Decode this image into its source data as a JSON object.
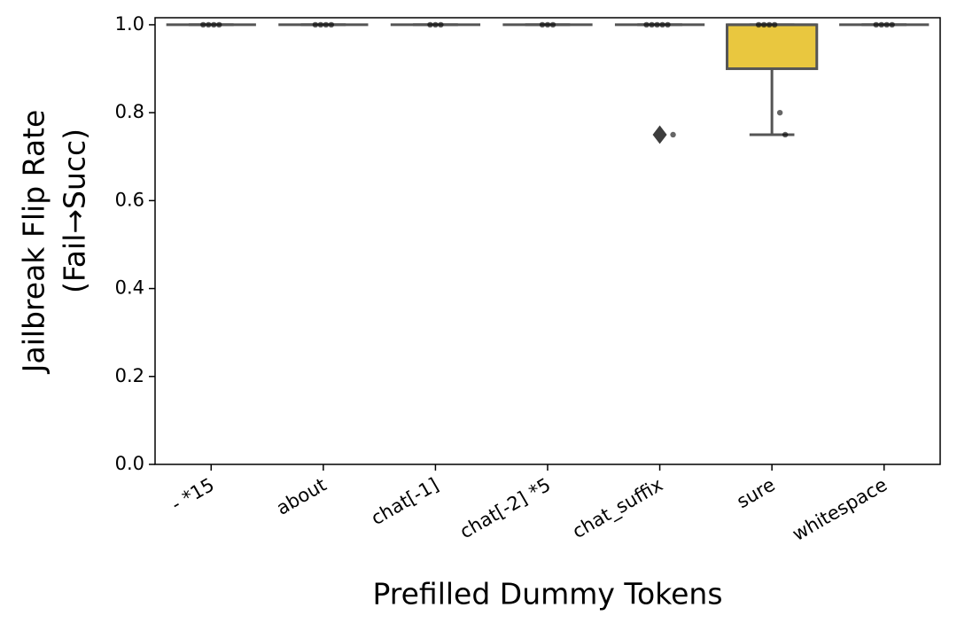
{
  "chart_data": {
    "type": "box",
    "x_label": "Prefilled Dummy Tokens",
    "y_label": [
      "Jailbreak Flip Rate",
      "(Fail→Succ)"
    ],
    "categories": [
      "- *15",
      "about",
      "chat[-1]",
      "chat[-2] *5",
      "chat_suffix",
      "sure",
      "whitespace"
    ],
    "boxes": [
      {
        "whislo": 1,
        "q1": 1,
        "med": 1,
        "q3": 1,
        "whishi": 1,
        "fliers": [],
        "points": [
          1,
          1,
          1,
          1
        ]
      },
      {
        "whislo": 1,
        "q1": 1,
        "med": 1,
        "q3": 1,
        "whishi": 1,
        "fliers": [],
        "points": [
          1,
          1,
          1,
          1
        ]
      },
      {
        "whislo": 1,
        "q1": 1,
        "med": 1,
        "q3": 1,
        "whishi": 1,
        "fliers": [],
        "points": [
          1,
          1,
          1
        ]
      },
      {
        "whislo": 1,
        "q1": 1,
        "med": 1,
        "q3": 1,
        "whishi": 1,
        "fliers": [],
        "points": [
          1,
          1,
          1
        ]
      },
      {
        "whislo": 1,
        "q1": 1,
        "med": 1,
        "q3": 1,
        "whishi": 1,
        "fliers": [
          0.75
        ],
        "points": [
          1,
          1,
          1,
          1,
          1,
          0.75
        ]
      },
      {
        "whislo": 0.75,
        "q1": 0.9,
        "med": 1,
        "q3": 1,
        "whishi": 1,
        "fliers": [],
        "points": [
          1,
          1,
          1,
          1,
          0.8,
          0.75
        ]
      },
      {
        "whislo": 1,
        "q1": 1,
        "med": 1,
        "q3": 1,
        "whishi": 1,
        "fliers": [],
        "points": [
          1,
          1,
          1,
          1
        ]
      }
    ],
    "color": "#e9c73f",
    "ylim": [
      0,
      1.016
    ],
    "yticks": [
      {
        "value": 0,
        "label": "0.0"
      },
      0.2,
      0.4,
      0.6,
      0.8,
      {
        "value": 1,
        "label": "1.0"
      }
    ]
  }
}
